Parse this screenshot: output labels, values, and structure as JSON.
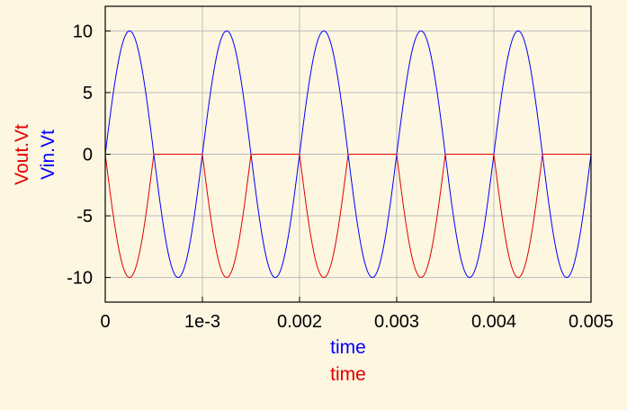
{
  "chart_data": {
    "type": "line",
    "xlabel": [
      "time",
      "time"
    ],
    "ylabel": [
      "Vout.Vt",
      "Vin.Vt"
    ],
    "xlim": [
      0,
      0.005
    ],
    "ylim": [
      -12,
      12
    ],
    "x_ticks": [
      0,
      0.001,
      0.002,
      0.003,
      0.004,
      0.005
    ],
    "x_tick_labels": [
      "0",
      "1e-3",
      "0.002",
      "0.003",
      "0.004",
      "0.005"
    ],
    "y_ticks": [
      -10,
      -5,
      0,
      5,
      10
    ],
    "y_tick_labels": [
      "-10",
      "-5",
      "0",
      "5",
      "10"
    ],
    "grid": true,
    "series": [
      {
        "name": "Vin.Vt",
        "color": "#0000ff",
        "function": "sine",
        "amplitude": 10,
        "frequency_hz": 1000,
        "x_range": [
          0,
          0.005
        ]
      },
      {
        "name": "Vout.Vt",
        "color": "#e00000",
        "function": "half-wave negative: min(0, -Vin.Vt)",
        "amplitude": 10,
        "frequency_hz": 1000,
        "x_range": [
          0,
          0.005
        ]
      }
    ],
    "colors": {
      "background": "#fdf6e1",
      "plot_background": "#fdf6e1",
      "grid": "#bdbdbd",
      "frame": "#000000"
    }
  }
}
